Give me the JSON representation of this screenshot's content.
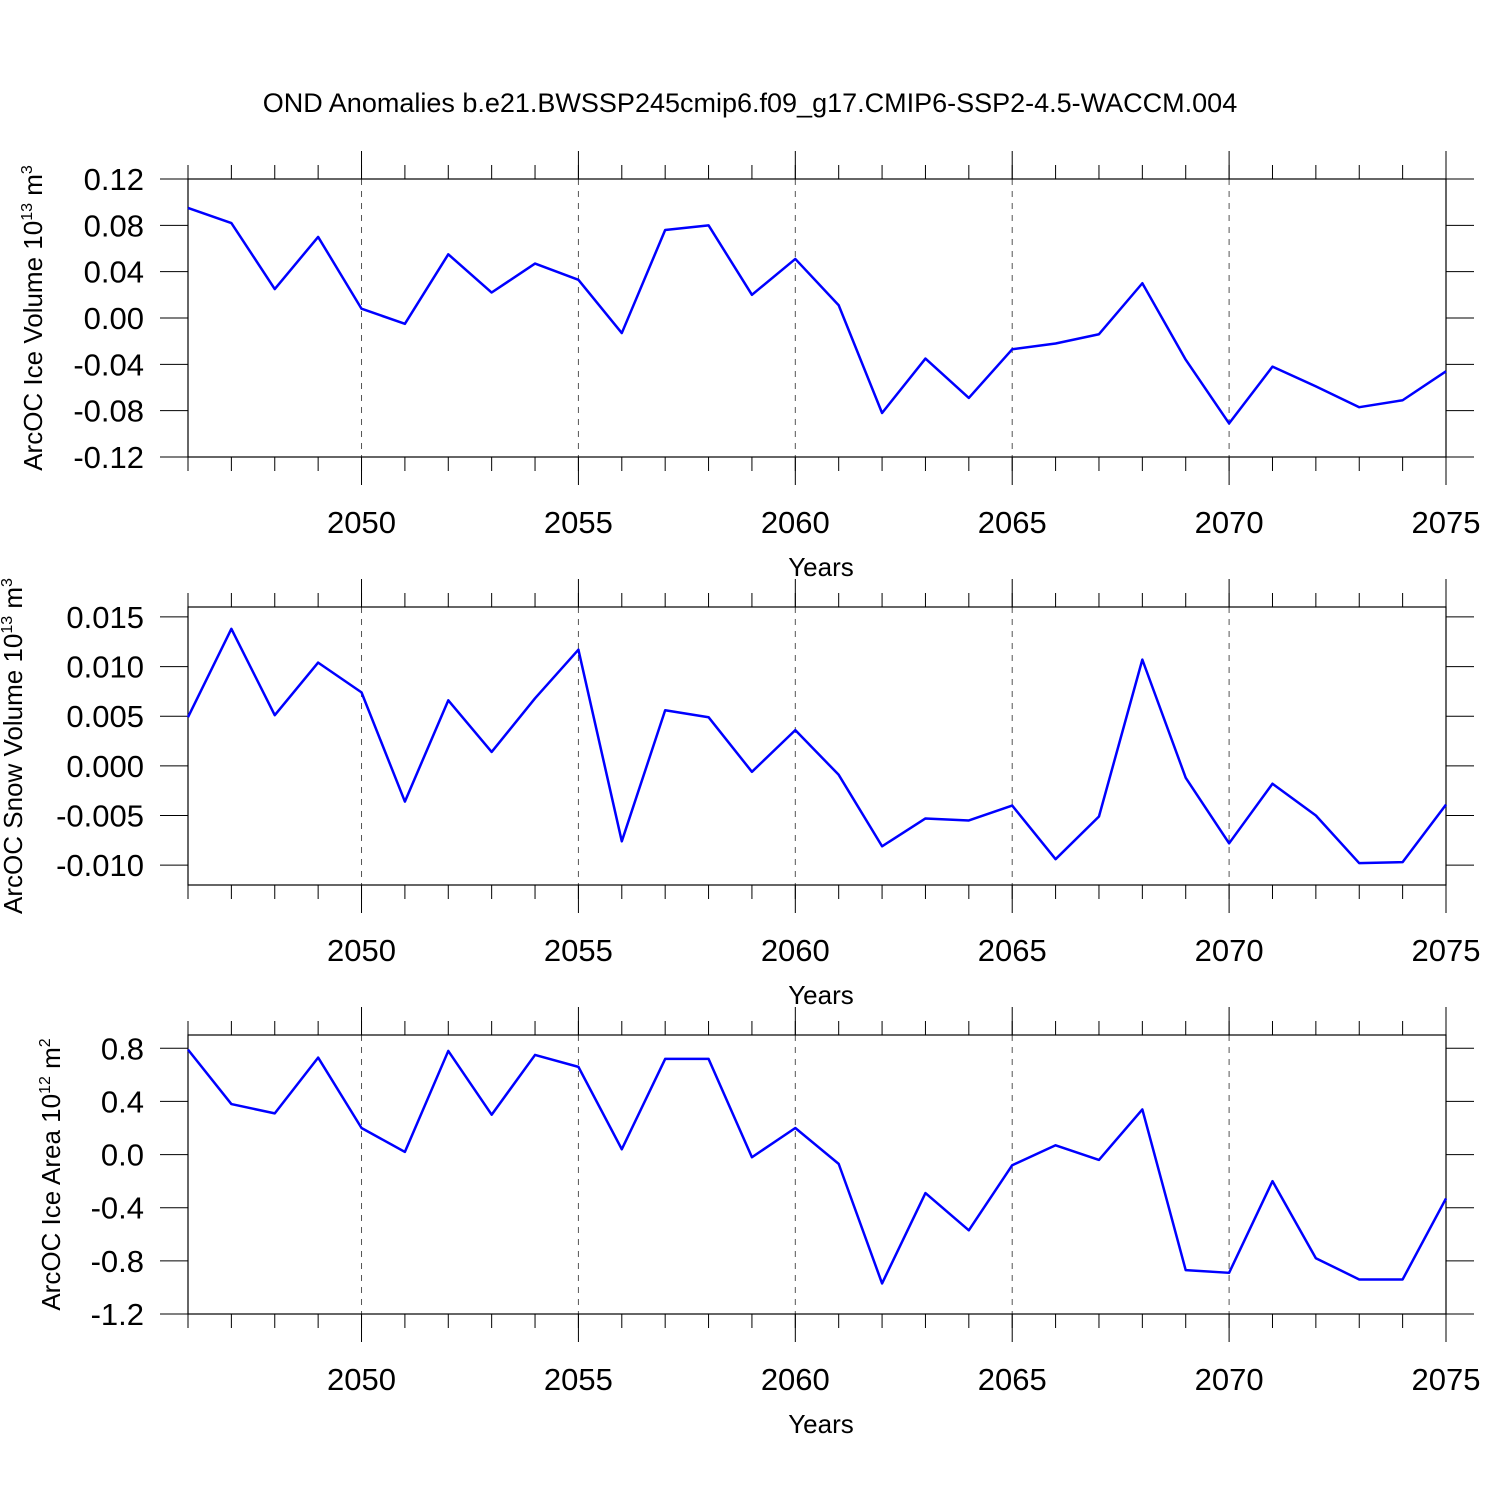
{
  "title": "OND Anomalies b.e21.BWSSP245cmip6.f09_g17.CMIP6-SSP2-4.5-WACCM.004",
  "chart_data": [
    {
      "type": "line",
      "ylabel": {
        "text": "ArcOC Ice Volume 10",
        "exp": "13",
        "unit": " m",
        "unit_exp": "3"
      },
      "xlabel": "Years",
      "x": [
        2046,
        2047,
        2048,
        2049,
        2050,
        2051,
        2052,
        2053,
        2054,
        2055,
        2056,
        2057,
        2058,
        2059,
        2060,
        2061,
        2062,
        2063,
        2064,
        2065,
        2066,
        2067,
        2068,
        2069,
        2070,
        2071,
        2072,
        2073,
        2074,
        2075
      ],
      "series": [
        {
          "color": "#0000ff",
          "values": [
            0.095,
            0.082,
            0.025,
            0.07,
            0.008,
            -0.005,
            0.055,
            0.022,
            0.047,
            0.033,
            -0.013,
            0.076,
            0.08,
            0.02,
            0.051,
            0.011,
            -0.082,
            -0.035,
            -0.069,
            -0.027,
            -0.022,
            -0.014,
            0.03,
            -0.036,
            -0.091,
            -0.042,
            -0.059,
            -0.077,
            -0.071,
            -0.046
          ]
        }
      ],
      "xlim": [
        2046,
        2075
      ],
      "xticks": [
        2050,
        2055,
        2060,
        2065,
        2070,
        2075
      ],
      "ylim": [
        -0.12,
        0.12
      ],
      "yticks": [
        -0.12,
        -0.08,
        -0.04,
        {
          "value": 0,
          "label": "0.00"
        },
        0.04,
        0.08,
        0.12
      ],
      "grid": true
    },
    {
      "type": "line",
      "ylabel": {
        "text": "ArcOC Snow Volume 10",
        "exp": "13",
        "unit": " m",
        "unit_exp": "3"
      },
      "xlabel": "Years",
      "x": [
        2046,
        2047,
        2048,
        2049,
        2050,
        2051,
        2052,
        2053,
        2054,
        2055,
        2056,
        2057,
        2058,
        2059,
        2060,
        2061,
        2062,
        2063,
        2064,
        2065,
        2066,
        2067,
        2068,
        2069,
        2070,
        2071,
        2072,
        2073,
        2074,
        2075
      ],
      "series": [
        {
          "color": "#0000ff",
          "values": [
            0.0049,
            0.0138,
            0.0051,
            0.0104,
            0.0074,
            -0.0036,
            0.0066,
            0.0014,
            0.0068,
            0.0117,
            -0.0076,
            0.0056,
            0.0049,
            -0.0006,
            0.0036,
            -0.0009,
            -0.0081,
            -0.0053,
            -0.0055,
            -0.004,
            -0.0094,
            -0.0051,
            0.0107,
            -0.0012,
            -0.0078,
            -0.0018,
            -0.005,
            -0.0098,
            -0.0097,
            -0.0039
          ]
        }
      ],
      "xlim": [
        2046,
        2075
      ],
      "xticks": [
        2050,
        2055,
        2060,
        2065,
        2070,
        2075
      ],
      "ylim": [
        -0.012,
        0.016
      ],
      "yticks": [
        {
          "value": -0.01,
          "label": "-0.010"
        },
        -0.005,
        {
          "value": 0,
          "label": "0.000"
        },
        0.005,
        {
          "value": 0.01,
          "label": "0.010"
        },
        0.015
      ],
      "grid": true
    },
    {
      "type": "line",
      "ylabel": {
        "text": "ArcOC Ice Area 10",
        "exp": "12",
        "unit": " m",
        "unit_exp": "2"
      },
      "xlabel": "Years",
      "x": [
        2046,
        2047,
        2048,
        2049,
        2050,
        2051,
        2052,
        2053,
        2054,
        2055,
        2056,
        2057,
        2058,
        2059,
        2060,
        2061,
        2062,
        2063,
        2064,
        2065,
        2066,
        2067,
        2068,
        2069,
        2070,
        2071,
        2072,
        2073,
        2074,
        2075
      ],
      "series": [
        {
          "color": "#0000ff",
          "values": [
            0.79,
            0.38,
            0.31,
            0.73,
            0.2,
            0.02,
            0.78,
            0.3,
            0.75,
            0.66,
            0.04,
            0.72,
            0.72,
            -0.02,
            0.2,
            -0.07,
            -0.97,
            -0.29,
            -0.57,
            -0.08,
            0.07,
            -0.04,
            0.34,
            -0.87,
            -0.89,
            -0.2,
            -0.78,
            -0.94,
            -0.94,
            -0.33
          ]
        }
      ],
      "xlim": [
        2046,
        2075
      ],
      "xticks": [
        2050,
        2055,
        2060,
        2065,
        2070,
        2075
      ],
      "ylim": [
        -1.2,
        0.9
      ],
      "yticks": [
        -1.2,
        -0.8,
        -0.4,
        {
          "value": 0,
          "label": "0.0"
        },
        0.4,
        0.8
      ],
      "grid": true
    }
  ]
}
